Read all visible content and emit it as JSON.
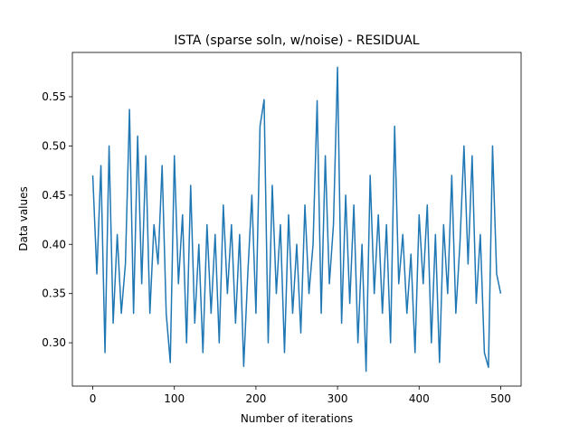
{
  "chart_data": {
    "type": "line",
    "title": "ISTA (sparse soln, w/noise) - RESIDUAL",
    "xlabel": "Number of iterations",
    "ylabel": "Data values",
    "color": "#1f77b4",
    "x": [
      0,
      5,
      10,
      15,
      20,
      25,
      30,
      35,
      40,
      45,
      50,
      55,
      60,
      65,
      70,
      75,
      80,
      85,
      90,
      95,
      100,
      105,
      110,
      115,
      120,
      125,
      130,
      135,
      140,
      145,
      150,
      155,
      160,
      165,
      170,
      175,
      180,
      185,
      190,
      195,
      200,
      205,
      210,
      215,
      220,
      225,
      230,
      235,
      240,
      245,
      250,
      255,
      260,
      265,
      270,
      275,
      280,
      285,
      290,
      295,
      300,
      305,
      310,
      315,
      320,
      325,
      330,
      335,
      340,
      345,
      350,
      355,
      360,
      365,
      370,
      375,
      380,
      385,
      390,
      395,
      400,
      405,
      410,
      415,
      420,
      425,
      430,
      435,
      440,
      445,
      450,
      455,
      460,
      465,
      470,
      475,
      480,
      485,
      490,
      495,
      500
    ],
    "values": [
      0.47,
      0.37,
      0.48,
      0.29,
      0.5,
      0.32,
      0.41,
      0.33,
      0.38,
      0.537,
      0.33,
      0.51,
      0.36,
      0.49,
      0.33,
      0.42,
      0.38,
      0.48,
      0.33,
      0.28,
      0.49,
      0.36,
      0.43,
      0.3,
      0.46,
      0.32,
      0.4,
      0.29,
      0.42,
      0.33,
      0.41,
      0.3,
      0.44,
      0.35,
      0.42,
      0.32,
      0.41,
      0.276,
      0.37,
      0.45,
      0.33,
      0.52,
      0.547,
      0.3,
      0.46,
      0.35,
      0.42,
      0.29,
      0.43,
      0.33,
      0.4,
      0.31,
      0.44,
      0.35,
      0.4,
      0.546,
      0.33,
      0.49,
      0.36,
      0.42,
      0.58,
      0.32,
      0.45,
      0.34,
      0.44,
      0.3,
      0.4,
      0.271,
      0.47,
      0.35,
      0.43,
      0.33,
      0.42,
      0.3,
      0.52,
      0.36,
      0.41,
      0.33,
      0.39,
      0.29,
      0.43,
      0.36,
      0.44,
      0.3,
      0.41,
      0.28,
      0.42,
      0.35,
      0.47,
      0.33,
      0.4,
      0.5,
      0.38,
      0.49,
      0.34,
      0.41,
      0.29,
      0.275,
      0.5,
      0.37,
      0.35
    ],
    "xlim": [
      -25,
      525
    ],
    "xticks": [
      0,
      100,
      200,
      300,
      400,
      500
    ],
    "ylim": [
      0.256,
      0.595
    ],
    "yticks": [
      {
        "value": 0.3,
        "label": "0.30"
      },
      0.35,
      {
        "value": 0.4,
        "label": "0.40"
      },
      0.45,
      {
        "value": 0.5,
        "label": "0.50"
      },
      0.55
    ]
  }
}
